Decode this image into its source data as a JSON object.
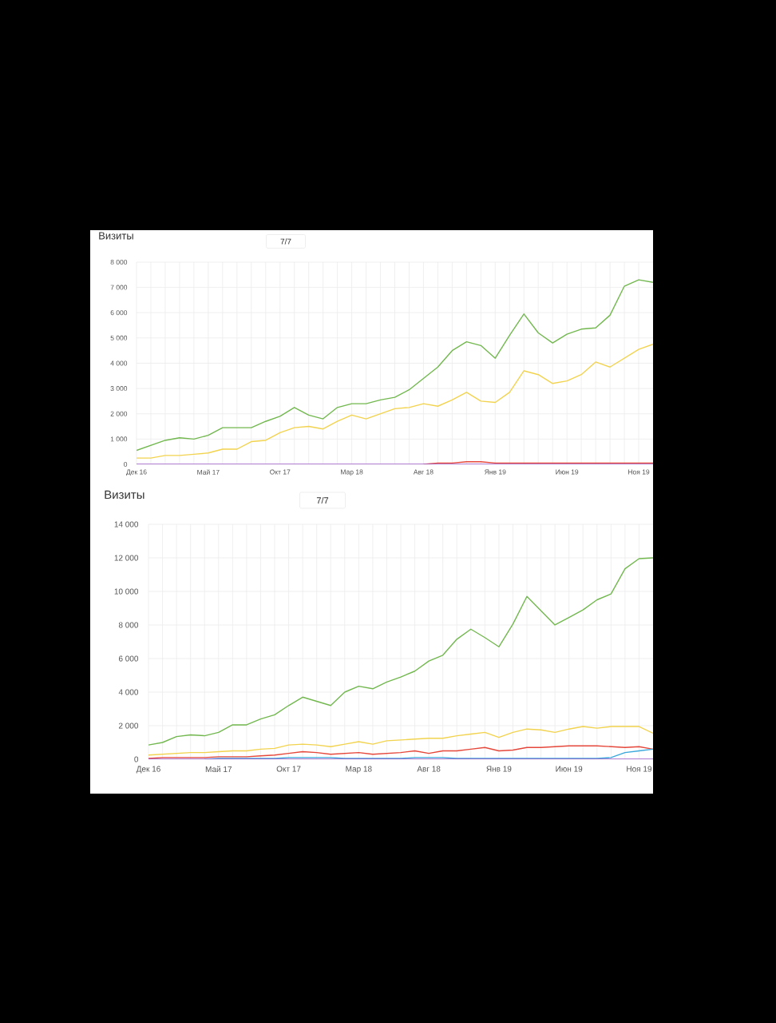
{
  "chart_data": [
    {
      "type": "line",
      "title": "Визиты",
      "annotations": [
        "7/7"
      ],
      "x": [
        "2016-12",
        "2017-01",
        "2017-02",
        "2017-03",
        "2017-04",
        "2017-05",
        "2017-06",
        "2017-07",
        "2017-08",
        "2017-09",
        "2017-10",
        "2017-11",
        "2017-12",
        "2018-01",
        "2018-02",
        "2018-03",
        "2018-04",
        "2018-05",
        "2018-06",
        "2018-07",
        "2018-08",
        "2018-09",
        "2018-10",
        "2018-11",
        "2018-12",
        "2019-01",
        "2019-02",
        "2019-03",
        "2019-04",
        "2019-05",
        "2019-06",
        "2019-07",
        "2019-08",
        "2019-09",
        "2019-10",
        "2019-11",
        "2019-12"
      ],
      "xlim": [
        "2016-12",
        "2019-12"
      ],
      "xticks": [
        {
          "value": "2016-12",
          "label": "Дек 16"
        },
        {
          "value": "2017-01",
          "label": null
        },
        {
          "value": "2017-02",
          "label": null
        },
        {
          "value": "2017-03",
          "label": null
        },
        {
          "value": "2017-04",
          "label": null
        },
        {
          "value": "2017-05",
          "label": "Май 17"
        },
        {
          "value": "2017-06",
          "label": null
        },
        {
          "value": "2017-07",
          "label": null
        },
        {
          "value": "2017-08",
          "label": null
        },
        {
          "value": "2017-09",
          "label": null
        },
        {
          "value": "2017-10",
          "label": "Окт 17"
        },
        {
          "value": "2017-11",
          "label": null
        },
        {
          "value": "2017-12",
          "label": null
        },
        {
          "value": "2018-01",
          "label": null
        },
        {
          "value": "2018-02",
          "label": null
        },
        {
          "value": "2018-03",
          "label": "Мар 18"
        },
        {
          "value": "2018-04",
          "label": null
        },
        {
          "value": "2018-05",
          "label": null
        },
        {
          "value": "2018-06",
          "label": null
        },
        {
          "value": "2018-07",
          "label": null
        },
        {
          "value": "2018-08",
          "label": "Авг 18"
        },
        {
          "value": "2018-09",
          "label": null
        },
        {
          "value": "2018-10",
          "label": null
        },
        {
          "value": "2018-11",
          "label": null
        },
        {
          "value": "2018-12",
          "label": null
        },
        {
          "value": "2019-01",
          "label": "Янв 19"
        },
        {
          "value": "2019-02",
          "label": null
        },
        {
          "value": "2019-03",
          "label": null
        },
        {
          "value": "2019-04",
          "label": null
        },
        {
          "value": "2019-05",
          "label": null
        },
        {
          "value": "2019-06",
          "label": "Июн 19"
        },
        {
          "value": "2019-07",
          "label": null
        },
        {
          "value": "2019-08",
          "label": null
        },
        {
          "value": "2019-09",
          "label": null
        },
        {
          "value": "2019-10",
          "label": null
        },
        {
          "value": "2019-11",
          "label": "Ноя 19"
        }
      ],
      "ylim": [
        0,
        8000
      ],
      "yticks": [
        0,
        {
          "value": 1000,
          "label": "1 000"
        },
        {
          "value": 2000,
          "label": "2 000"
        },
        {
          "value": 3000,
          "label": "3 000"
        },
        {
          "value": 4000,
          "label": "4 000"
        },
        {
          "value": 5000,
          "label": "5 000"
        },
        {
          "value": 6000,
          "label": "6 000"
        },
        {
          "value": 7000,
          "label": "7 000"
        },
        {
          "value": 8000,
          "label": "8 000"
        }
      ],
      "grid": true,
      "series": [
        {
          "color": "#72b84f",
          "values": [
            550,
            750,
            950,
            1050,
            1000,
            1150,
            1450,
            1450,
            1450,
            1700,
            1900,
            2250,
            1950,
            1800,
            2250,
            2400,
            2400,
            2550,
            2650,
            2950,
            3400,
            3850,
            4500,
            4850,
            4700,
            4200,
            5100,
            5950,
            5200,
            4800,
            5150,
            5350,
            5400,
            5900,
            7050,
            7300,
            7200
          ]
        },
        {
          "color": "#f2d34f",
          "values": [
            250,
            250,
            350,
            350,
            400,
            450,
            600,
            600,
            900,
            950,
            1250,
            1450,
            1500,
            1400,
            1700,
            1950,
            1800,
            2000,
            2200,
            2250,
            2400,
            2300,
            2550,
            2850,
            2500,
            2450,
            2850,
            3700,
            3550,
            3200,
            3300,
            3550,
            4050,
            3850,
            4200,
            4550,
            4750
          ]
        },
        {
          "color": "#e5473a",
          "values": [
            null,
            null,
            null,
            null,
            null,
            null,
            null,
            null,
            null,
            null,
            null,
            null,
            null,
            null,
            null,
            null,
            null,
            null,
            null,
            null,
            0,
            50,
            50,
            100,
            100,
            50,
            50,
            50,
            50,
            50,
            50,
            50,
            50,
            50,
            50,
            50,
            50
          ]
        },
        {
          "color": "#9b59c9",
          "values": [
            0,
            0,
            0,
            0,
            0,
            0,
            0,
            0,
            0,
            0,
            0,
            0,
            0,
            0,
            0,
            0,
            0,
            0,
            0,
            0,
            0,
            0,
            0,
            0,
            0,
            0,
            0,
            0,
            0,
            0,
            0,
            0,
            0,
            0,
            0,
            0,
            0
          ]
        }
      ]
    },
    {
      "type": "line",
      "title": "Визиты",
      "annotations": [
        "7/7"
      ],
      "x": [
        "2016-12",
        "2017-01",
        "2017-02",
        "2017-03",
        "2017-04",
        "2017-05",
        "2017-06",
        "2017-07",
        "2017-08",
        "2017-09",
        "2017-10",
        "2017-11",
        "2017-12",
        "2018-01",
        "2018-02",
        "2018-03",
        "2018-04",
        "2018-05",
        "2018-06",
        "2018-07",
        "2018-08",
        "2018-09",
        "2018-10",
        "2018-11",
        "2018-12",
        "2019-01",
        "2019-02",
        "2019-03",
        "2019-04",
        "2019-05",
        "2019-06",
        "2019-07",
        "2019-08",
        "2019-09",
        "2019-10",
        "2019-11",
        "2019-12"
      ],
      "xlim": [
        "2016-12",
        "2019-12"
      ],
      "xticks": [
        {
          "value": "2016-12",
          "label": "Дек 16"
        },
        {
          "value": "2017-01",
          "label": null
        },
        {
          "value": "2017-02",
          "label": null
        },
        {
          "value": "2017-03",
          "label": null
        },
        {
          "value": "2017-04",
          "label": null
        },
        {
          "value": "2017-05",
          "label": "Май 17"
        },
        {
          "value": "2017-06",
          "label": null
        },
        {
          "value": "2017-07",
          "label": null
        },
        {
          "value": "2017-08",
          "label": null
        },
        {
          "value": "2017-09",
          "label": null
        },
        {
          "value": "2017-10",
          "label": "Окт 17"
        },
        {
          "value": "2017-11",
          "label": null
        },
        {
          "value": "2017-12",
          "label": null
        },
        {
          "value": "2018-01",
          "label": null
        },
        {
          "value": "2018-02",
          "label": null
        },
        {
          "value": "2018-03",
          "label": "Мар 18"
        },
        {
          "value": "2018-04",
          "label": null
        },
        {
          "value": "2018-05",
          "label": null
        },
        {
          "value": "2018-06",
          "label": null
        },
        {
          "value": "2018-07",
          "label": null
        },
        {
          "value": "2018-08",
          "label": "Авг 18"
        },
        {
          "value": "2018-09",
          "label": null
        },
        {
          "value": "2018-10",
          "label": null
        },
        {
          "value": "2018-11",
          "label": null
        },
        {
          "value": "2018-12",
          "label": null
        },
        {
          "value": "2019-01",
          "label": "Янв 19"
        },
        {
          "value": "2019-02",
          "label": null
        },
        {
          "value": "2019-03",
          "label": null
        },
        {
          "value": "2019-04",
          "label": null
        },
        {
          "value": "2019-05",
          "label": null
        },
        {
          "value": "2019-06",
          "label": "Июн 19"
        },
        {
          "value": "2019-07",
          "label": null
        },
        {
          "value": "2019-08",
          "label": null
        },
        {
          "value": "2019-09",
          "label": null
        },
        {
          "value": "2019-10",
          "label": null
        },
        {
          "value": "2019-11",
          "label": "Ноя 19"
        }
      ],
      "ylim": [
        0,
        14000
      ],
      "yticks": [
        0,
        {
          "value": 2000,
          "label": "2 000"
        },
        {
          "value": 4000,
          "label": "4 000"
        },
        {
          "value": 6000,
          "label": "6 000"
        },
        {
          "value": 8000,
          "label": "8 000"
        },
        {
          "value": 10000,
          "label": "10 000"
        },
        {
          "value": 12000,
          "label": "12 000"
        },
        {
          "value": 14000,
          "label": "14 000"
        }
      ],
      "grid": true,
      "series": [
        {
          "color": "#72b84f",
          "values": [
            850,
            1000,
            1350,
            1450,
            1400,
            1600,
            2050,
            2050,
            2400,
            2650,
            3200,
            3700,
            3450,
            3200,
            4000,
            4350,
            4200,
            4600,
            4900,
            5250,
            5850,
            6200,
            7150,
            7750,
            7250,
            6700,
            8050,
            9700,
            8850,
            8000,
            8450,
            8900,
            9500,
            9850,
            11350,
            11950,
            12000
          ]
        },
        {
          "color": "#f2d34f",
          "values": [
            250,
            300,
            350,
            400,
            400,
            450,
            500,
            500,
            600,
            650,
            850,
            900,
            850,
            750,
            900,
            1050,
            900,
            1100,
            1150,
            1200,
            1250,
            1250,
            1400,
            1500,
            1600,
            1300,
            1600,
            1800,
            1750,
            1600,
            1800,
            1950,
            1850,
            1950,
            1950,
            1950,
            1550
          ]
        },
        {
          "color": "#e5473a",
          "values": [
            50,
            100,
            100,
            100,
            100,
            150,
            150,
            150,
            200,
            250,
            350,
            450,
            400,
            300,
            350,
            400,
            300,
            350,
            400,
            500,
            350,
            500,
            500,
            600,
            700,
            500,
            550,
            700,
            700,
            750,
            800,
            800,
            800,
            750,
            700,
            750,
            600
          ]
        },
        {
          "color": "#3aa8dc",
          "values": [
            null,
            null,
            null,
            null,
            0,
            50,
            50,
            50,
            50,
            50,
            100,
            100,
            100,
            100,
            50,
            50,
            50,
            50,
            50,
            100,
            100,
            100,
            50,
            50,
            50,
            50,
            50,
            50,
            50,
            50,
            50,
            50,
            50,
            100,
            400,
            500,
            600
          ]
        },
        {
          "color": "#9b59c9",
          "values": [
            0,
            0,
            0,
            0,
            0,
            0,
            0,
            0,
            0,
            0,
            0,
            0,
            0,
            0,
            0,
            0,
            0,
            0,
            0,
            0,
            0,
            0,
            0,
            0,
            0,
            0,
            0,
            0,
            0,
            0,
            0,
            0,
            0,
            0,
            0,
            0,
            0
          ]
        }
      ]
    }
  ]
}
